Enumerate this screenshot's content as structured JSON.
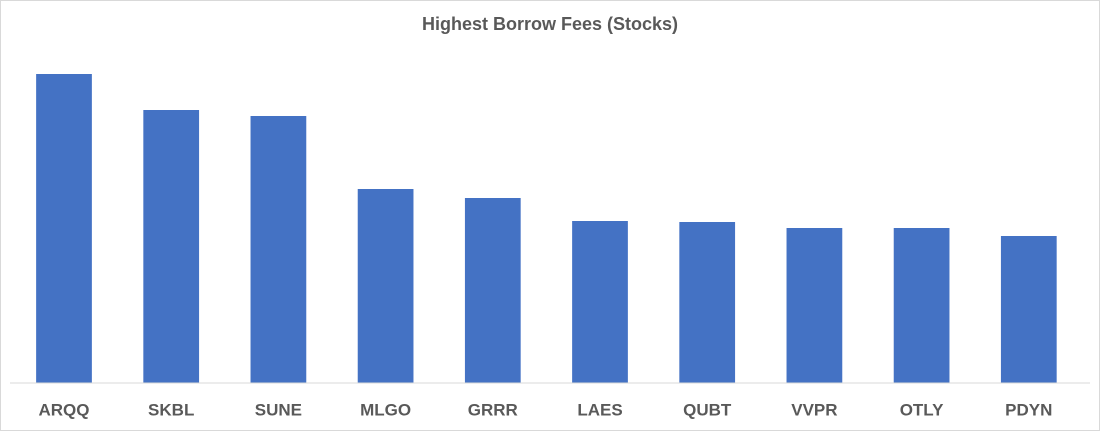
{
  "chart_data": {
    "type": "bar",
    "title": "Highest Borrow Fees (Stocks)",
    "categories": [
      "ARQQ",
      "SKBL",
      "SUNE",
      "MLGO",
      "GRRR",
      "LAES",
      "QUBT",
      "VVPR",
      "OTLY",
      "PDYN"
    ],
    "values": [
      309,
      273,
      267,
      194,
      185,
      162,
      161,
      155,
      155,
      147
    ],
    "color": "#4472c4",
    "ylim": [
      0,
      340
    ]
  }
}
